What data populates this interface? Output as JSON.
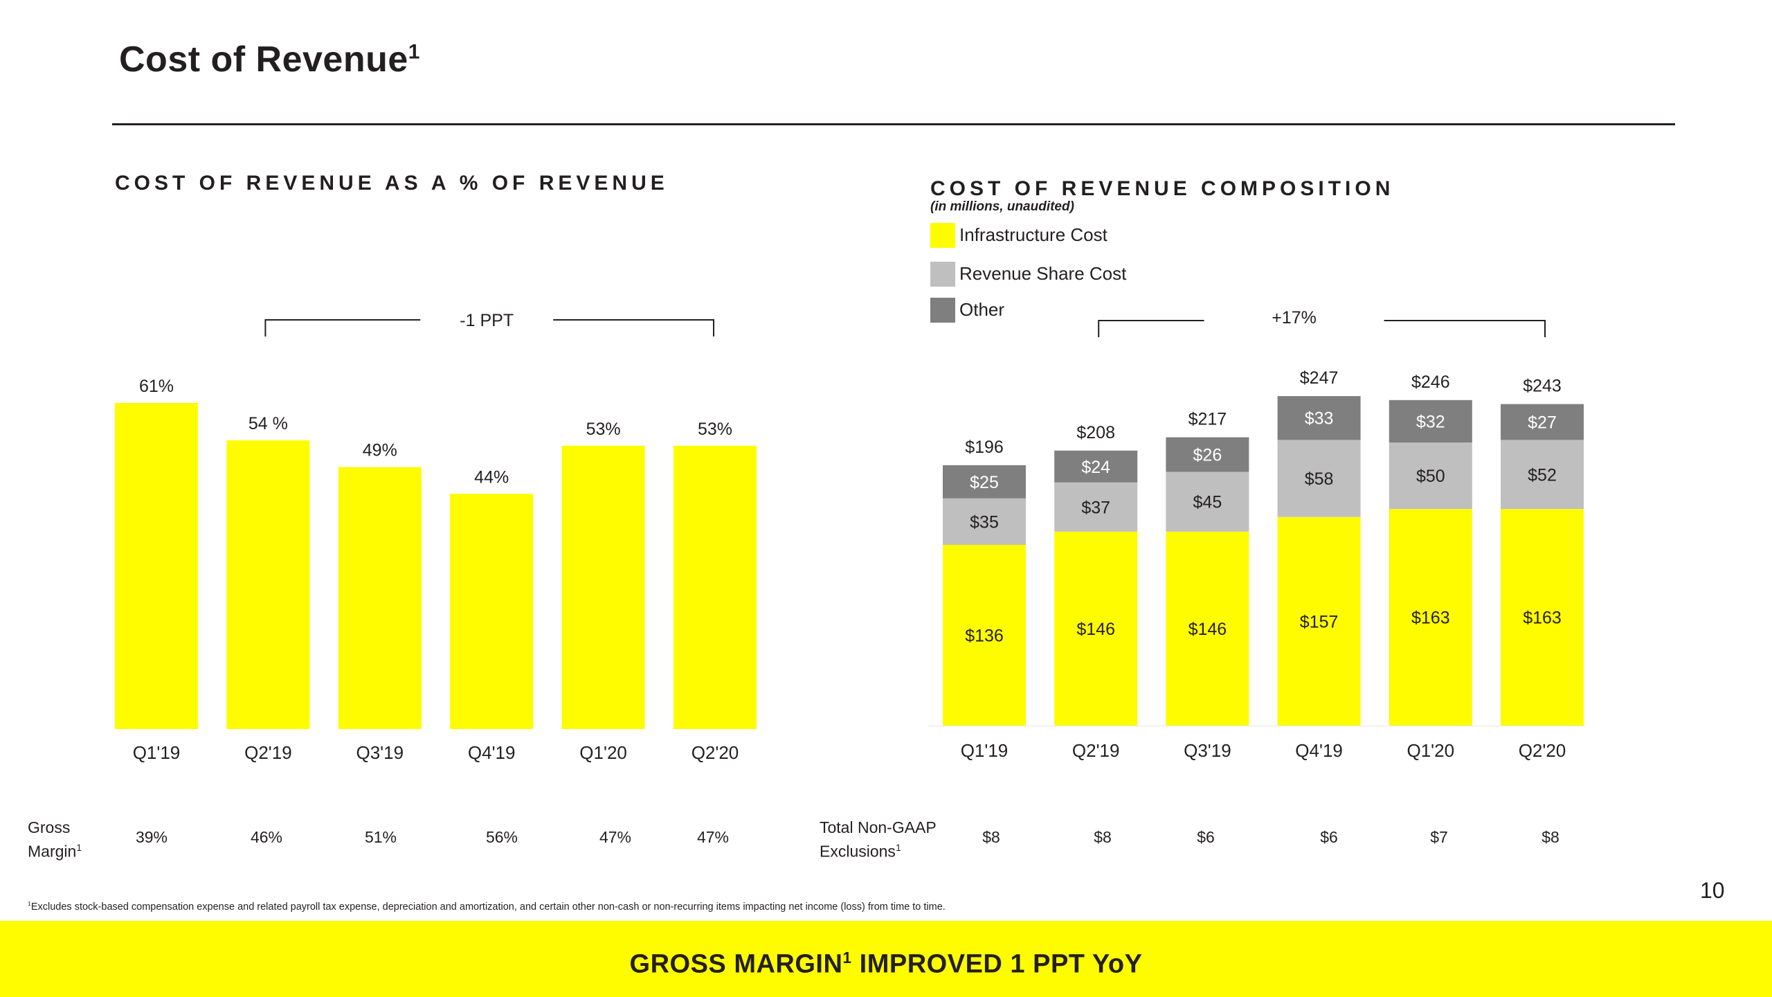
{
  "header": {
    "title": "Cost of Revenue",
    "title_sup": "1",
    "page_number": "10"
  },
  "colors": {
    "yellow": "#fffc00",
    "revenue_share_gray": "#bfbfbf",
    "other_gray": "#7f7f7f",
    "text": "#231f20"
  },
  "left_section": {
    "title": "COST OF REVENUE AS A % OF REVENUE"
  },
  "right_section": {
    "title": "COST OF REVENUE COMPOSITION",
    "subtitle": "(in millions, unaudited)",
    "legend": [
      {
        "label": "Infrastructure Cost",
        "color": "#fffc00"
      },
      {
        "label": "Revenue Share Cost",
        "color": "#bfbfbf"
      },
      {
        "label": "Other",
        "color": "#7f7f7f"
      }
    ]
  },
  "chart_data": [
    {
      "type": "bar",
      "title": "COST OF REVENUE AS A % OF REVENUE",
      "categories": [
        "Q1'19",
        "Q2'19",
        "Q3'19",
        "Q4'19",
        "Q1'20",
        "Q2'20"
      ],
      "values": [
        61,
        54,
        49,
        44,
        53,
        53
      ],
      "value_labels": [
        "61%",
        "54 %",
        "49%",
        "44%",
        "53%",
        "53%"
      ],
      "unit": "%",
      "ylim": [
        0,
        61
      ],
      "bracket": {
        "label": "-1 PPT",
        "from": "Q2'19",
        "to": "Q2'20"
      },
      "color": "#fffc00"
    },
    {
      "type": "bar",
      "stacked": true,
      "title": "COST OF REVENUE COMPOSITION",
      "subtitle": "(in millions, unaudited)",
      "categories": [
        "Q1'19",
        "Q2'19",
        "Q3'19",
        "Q4'19",
        "Q1'20",
        "Q2'20"
      ],
      "series": [
        {
          "name": "Infrastructure Cost",
          "color": "#fffc00",
          "values": [
            136,
            146,
            146,
            157,
            163,
            163
          ],
          "labels": [
            "$136",
            "$146",
            "$146",
            "$157",
            "$163",
            "$163"
          ]
        },
        {
          "name": "Revenue Share Cost",
          "color": "#bfbfbf",
          "values": [
            35,
            37,
            45,
            58,
            50,
            52
          ],
          "labels": [
            "$35",
            "$37",
            "$45",
            "$58",
            "$50",
            "$52"
          ]
        },
        {
          "name": "Other",
          "color": "#7f7f7f",
          "values": [
            25,
            24,
            26,
            33,
            32,
            27
          ],
          "labels": [
            "$25",
            "$24",
            "$26",
            "$33",
            "$32",
            "$27"
          ]
        }
      ],
      "totals": [
        196,
        208,
        217,
        247,
        246,
        243
      ],
      "total_labels": [
        "$196",
        "$208",
        "$217",
        "$247",
        "$246",
        "$243"
      ],
      "ylim": [
        0,
        247
      ],
      "bracket": {
        "label": "+17%",
        "from": "Q2'19",
        "to": "Q2'20"
      }
    }
  ],
  "gross_margin": {
    "label": "Gross Margin",
    "label_line1": "Gross",
    "label_line2": "Margin",
    "label_sup": "1",
    "values": [
      "39%",
      "46%",
      "51%",
      "56%",
      "47%",
      "47%"
    ]
  },
  "non_gaap": {
    "label_line1": "Total Non-GAAP",
    "label_line2": "Exclusions",
    "label_sup": "1",
    "values": [
      "$8",
      "$8",
      "$6",
      "$6",
      "$7",
      "$8"
    ]
  },
  "footnote": {
    "marker": "1",
    "text": "Excludes stock-based compensation expense and related payroll tax expense, depreciation and amortization, and certain other non-cash or non-recurring items impacting net income (loss) from time to time."
  },
  "banner": {
    "text_before": "GROSS MARGIN",
    "sup": "1",
    "text_after": " IMPROVED 1 PPT YoY"
  }
}
